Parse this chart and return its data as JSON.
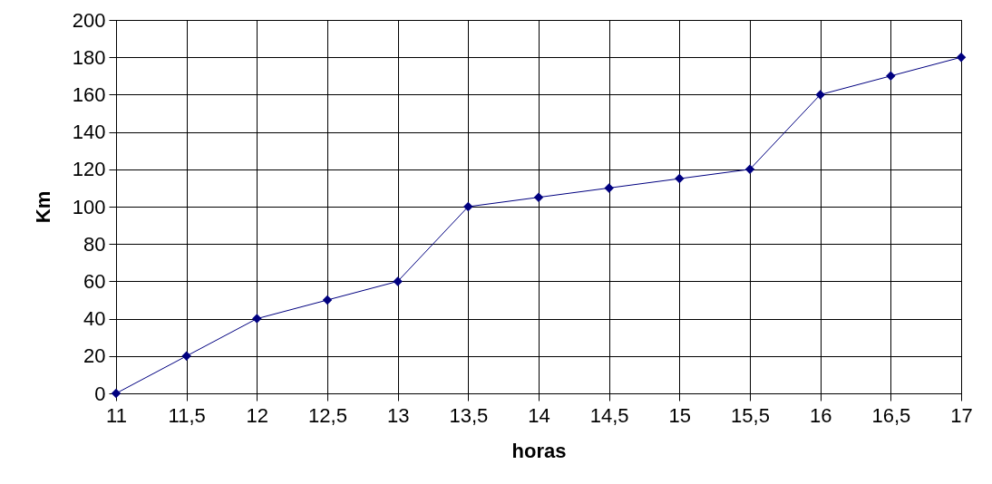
{
  "chart_data": {
    "type": "line",
    "xlabel": "horas",
    "ylabel": "Km",
    "x": [
      11,
      11.5,
      12,
      12.5,
      13,
      13.5,
      14,
      14.5,
      15,
      15.5,
      16,
      16.5,
      17
    ],
    "series": [
      {
        "color": "#000080",
        "values": [
          0,
          20,
          40,
          50,
          60,
          100,
          105,
          110,
          115,
          120,
          160,
          170,
          180
        ]
      }
    ],
    "xlim": [
      11,
      17
    ],
    "xticks": [
      11,
      {
        "value": 11.5,
        "label": "11,5"
      },
      12,
      {
        "value": 12.5,
        "label": "12,5"
      },
      13,
      {
        "value": 13.5,
        "label": "13,5"
      },
      14,
      {
        "value": 14.5,
        "label": "14,5"
      },
      15,
      {
        "value": 15.5,
        "label": "15,5"
      },
      16,
      {
        "value": 16.5,
        "label": "16,5"
      },
      17
    ],
    "ylim": [
      0,
      200
    ],
    "yticks": [
      0,
      20,
      40,
      60,
      80,
      100,
      120,
      140,
      160,
      180,
      200
    ],
    "grid": true,
    "marker": "diamond",
    "line_style": "solid"
  }
}
